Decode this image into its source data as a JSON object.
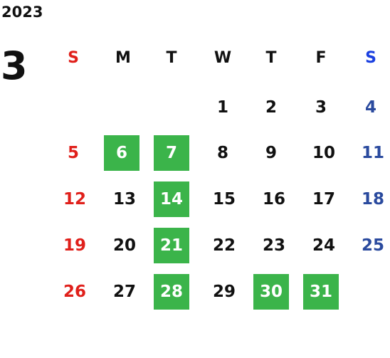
{
  "year": "2023",
  "month": "3",
  "colors": {
    "sunday": "#e0201b",
    "saturday_header": "#1a3fe0",
    "saturday": "#2a4a9e",
    "highlight": "#3bb44a",
    "text": "#111111"
  },
  "weekdays": [
    "S",
    "M",
    "T",
    "W",
    "T",
    "F",
    "S"
  ],
  "weeks": [
    [
      "",
      "",
      "",
      "1",
      "2",
      "3",
      "4"
    ],
    [
      "5",
      "6",
      "7",
      "8",
      "9",
      "10",
      "11"
    ],
    [
      "12",
      "13",
      "14",
      "15",
      "16",
      "17",
      "18"
    ],
    [
      "19",
      "20",
      "21",
      "22",
      "23",
      "24",
      "25"
    ],
    [
      "26",
      "27",
      "28",
      "29",
      "30",
      "31",
      ""
    ]
  ],
  "highlighted_days": [
    "6",
    "7",
    "14",
    "21",
    "28",
    "30",
    "31"
  ]
}
